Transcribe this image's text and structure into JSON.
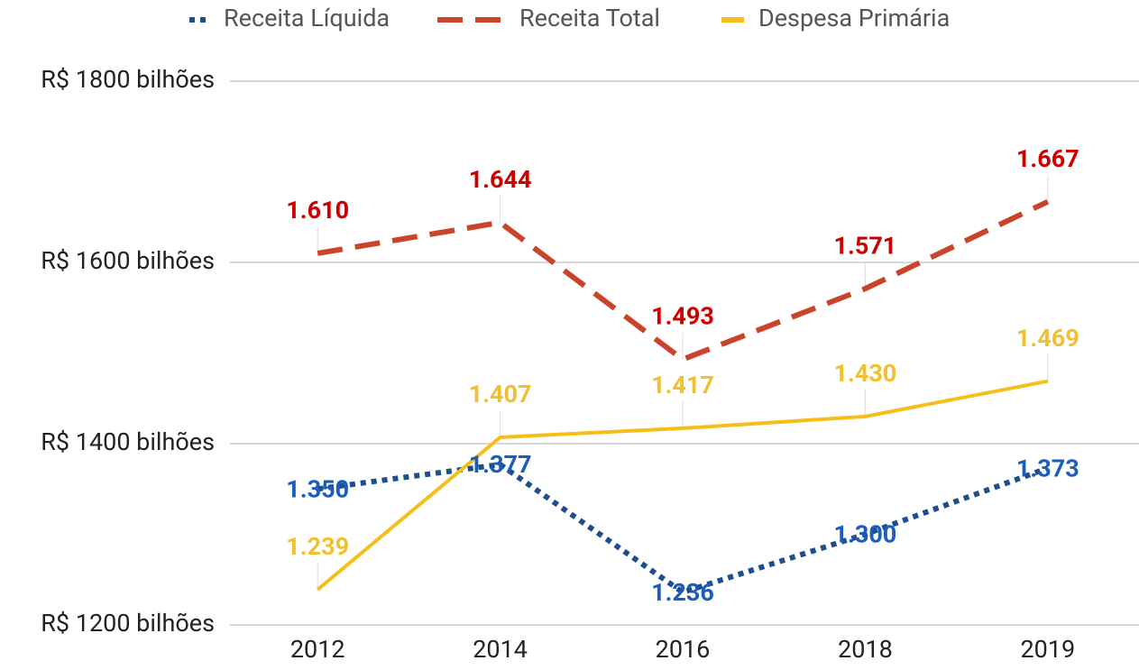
{
  "chart_data": {
    "type": "line",
    "categories": [
      "2012",
      "2014",
      "2016",
      "2018",
      "2019"
    ],
    "series": [
      {
        "name": "Receita Líquida",
        "color": "#1f4e8c",
        "label_color": "#1a5dbf",
        "line_style": "dotted",
        "values": [
          1350,
          1377,
          1236,
          1300,
          1373
        ],
        "value_labels": [
          "1.350",
          "1.377",
          "1.236",
          "1.300",
          "1.373"
        ]
      },
      {
        "name": "Receita Total",
        "color": "#c9442a",
        "label_color": "#cc0000",
        "line_style": "dashed",
        "values": [
          1610,
          1644,
          1493,
          1571,
          1667
        ],
        "value_labels": [
          "1.610",
          "1.644",
          "1.493",
          "1.571",
          "1.667"
        ]
      },
      {
        "name": "Despesa Primária",
        "color": "#f5bf1a",
        "label_color": "#f0c030",
        "line_style": "solid",
        "values": [
          1239,
          1407,
          1417,
          1430,
          1469
        ],
        "value_labels": [
          "1.239",
          "1.407",
          "1.417",
          "1.430",
          "1.469"
        ]
      }
    ],
    "ylim": [
      1200,
      1800
    ],
    "yticks": [
      {
        "value": 1200,
        "label": "R$ 1200 bilhões"
      },
      {
        "value": 1400,
        "label": "R$ 1400 bilhões"
      },
      {
        "value": 1600,
        "label": "R$ 1600 bilhões"
      },
      {
        "value": 1800,
        "label": "R$ 1800 bilhões"
      }
    ],
    "grid": true,
    "legend": "top"
  }
}
